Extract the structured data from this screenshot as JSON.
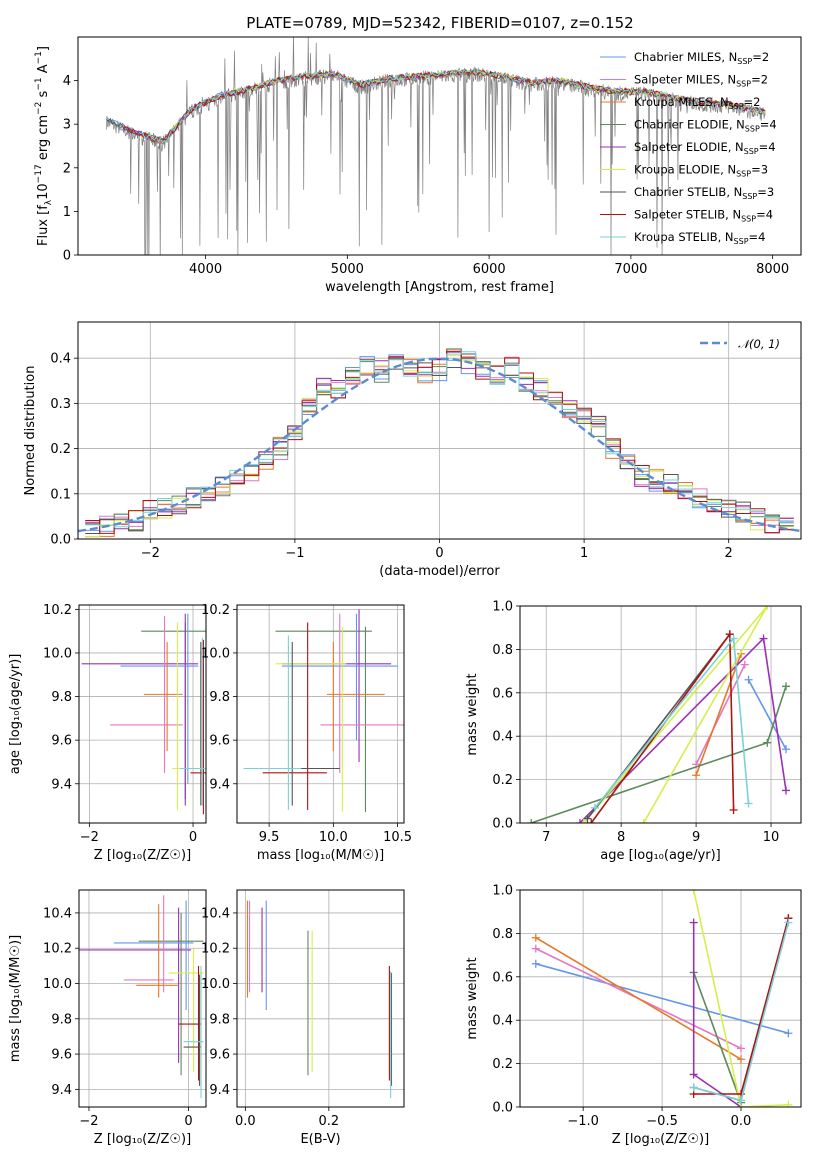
{
  "figure_title": "PLATE=0789, MJD=52342, FIBERID=0107, z=0.152",
  "legend_suffix": "N",
  "legend_sub": "SSP",
  "models": [
    {
      "label": "Chabrier MILES",
      "nssp": "2",
      "color": "#6495ED"
    },
    {
      "label": "Salpeter MILES",
      "nssp": "2",
      "color": "#E377C2"
    },
    {
      "label": "Kroupa MILES",
      "nssp": "2",
      "color": "#E8782A"
    },
    {
      "label": "Chabrier ELODIE",
      "nssp": "4",
      "color": "#5C8A5C"
    },
    {
      "label": "Salpeter ELODIE",
      "nssp": "4",
      "color": "#9B30B4"
    },
    {
      "label": "Kroupa ELODIE",
      "nssp": "3",
      "color": "#D4F04A"
    },
    {
      "label": "Chabrier STELIB",
      "nssp": "3",
      "color": "#555555"
    },
    {
      "label": "Salpeter STELIB",
      "nssp": "4",
      "color": "#B0120E"
    },
    {
      "label": "Kroupa STELIB",
      "nssp": "4",
      "color": "#78D2D8"
    }
  ],
  "chart_data": [
    {
      "id": "spectrum",
      "type": "line",
      "xlabel": "wavelength [Angstrom, rest frame]",
      "ylabel_text": "Flux [f",
      "ylabel_unit": "10",
      "ylabel_exp": "−17",
      "ylabel_rest": "erg cm",
      "xlim": [
        3100,
        8200
      ],
      "ylim": [
        0,
        5
      ],
      "xticks": [
        "4000",
        "5000",
        "6000",
        "7000",
        "8000"
      ],
      "xtick_values": [
        4000,
        5000,
        6000,
        7000,
        8000
      ],
      "yticks": [
        "0",
        "1",
        "2",
        "3",
        "4"
      ],
      "ytick_values": [
        0,
        1,
        2,
        3,
        4
      ],
      "continuum": {
        "x": [
          3300,
          3500,
          3700,
          3900,
          4100,
          4300,
          4500,
          4700,
          4900,
          5100,
          5300,
          5500,
          5700,
          5900,
          6100,
          6300,
          6500,
          6700,
          6900,
          7100,
          7300,
          7500,
          7700,
          7900
        ],
        "y": [
          3.05,
          2.75,
          2.55,
          3.3,
          3.6,
          3.75,
          3.95,
          4.05,
          4.1,
          3.85,
          4.0,
          4.05,
          4.1,
          4.15,
          4.05,
          3.9,
          3.95,
          3.8,
          3.7,
          3.7,
          3.55,
          3.45,
          3.4,
          3.25
        ]
      }
    },
    {
      "id": "residuals",
      "type": "line",
      "xlabel": "(data-model)/error",
      "ylabel": "Normed distribution",
      "legend": "𝒩(0, 1)",
      "xlim": [
        -2.5,
        2.5
      ],
      "ylim": [
        0,
        0.48
      ],
      "xticks": [
        "−2",
        "−1",
        "0",
        "1",
        "2"
      ],
      "xtick_values": [
        -2,
        -1,
        0,
        1,
        2
      ],
      "yticks": [
        "0.0",
        "0.1",
        "0.2",
        "0.3",
        "0.4"
      ],
      "ytick_values": [
        0,
        0.1,
        0.2,
        0.3,
        0.4
      ],
      "bin_centers": [
        -2.4,
        -2.3,
        -2.2,
        -2.1,
        -2.0,
        -1.9,
        -1.8,
        -1.7,
        -1.6,
        -1.5,
        -1.4,
        -1.3,
        -1.2,
        -1.1,
        -1.0,
        -0.9,
        -0.8,
        -0.7,
        -0.6,
        -0.5,
        -0.4,
        -0.3,
        -0.2,
        -0.1,
        0.0,
        0.1,
        0.2,
        0.3,
        0.4,
        0.5,
        0.6,
        0.7,
        0.8,
        0.9,
        1.0,
        1.1,
        1.2,
        1.3,
        1.4,
        1.5,
        1.6,
        1.7,
        1.8,
        1.9,
        2.0,
        2.1,
        2.2,
        2.3,
        2.4
      ],
      "histogram_mean": [
        0.023,
        0.028,
        0.035,
        0.04,
        0.062,
        0.065,
        0.08,
        0.09,
        0.1,
        0.115,
        0.13,
        0.15,
        0.175,
        0.2,
        0.23,
        0.3,
        0.34,
        0.33,
        0.36,
        0.385,
        0.37,
        0.39,
        0.385,
        0.37,
        0.375,
        0.4,
        0.39,
        0.375,
        0.36,
        0.38,
        0.35,
        0.33,
        0.31,
        0.29,
        0.27,
        0.25,
        0.2,
        0.17,
        0.14,
        0.13,
        0.12,
        0.1,
        0.09,
        0.08,
        0.07,
        0.06,
        0.045,
        0.035,
        0.028
      ]
    },
    {
      "id": "age_vs_Z",
      "type": "scatter",
      "xlabel": "Z [log₁₀(Z/Z☉)]",
      "ylabel": "age  [log₁₀(age/yr)]",
      "xlim": [
        -2.2,
        0.25
      ],
      "ylim": [
        9.22,
        10.22
      ],
      "xticks": [
        "−2",
        "0"
      ],
      "xtick_values": [
        -2,
        0
      ],
      "yticks": [
        "9.4",
        "9.6",
        "9.8",
        "10.0",
        "10.2"
      ],
      "ytick_values": [
        9.4,
        9.6,
        9.8,
        10.0,
        10.2
      ]
    },
    {
      "id": "age_vs_mass",
      "type": "scatter",
      "xlabel": "mass [log₁₀(M/M☉)]",
      "xlim": [
        9.25,
        10.55
      ],
      "ylim": [
        9.22,
        10.22
      ],
      "xticks": [
        "9.5",
        "10.0",
        "10.5"
      ],
      "xtick_values": [
        9.5,
        10.0,
        10.5
      ],
      "yticks": [
        "9.4",
        "9.6",
        "9.8",
        "10.0",
        "10.2"
      ],
      "ytick_values": [
        9.4,
        9.6,
        9.8,
        10.0,
        10.2
      ]
    },
    {
      "id": "weight_vs_age",
      "type": "line",
      "xlabel": "age  [log₁₀(age/yr)]",
      "ylabel": "mass weight",
      "xlim": [
        6.65,
        10.4
      ],
      "ylim": [
        0,
        1.0
      ],
      "xticks": [
        "7",
        "8",
        "9",
        "10"
      ],
      "xtick_values": [
        7,
        8,
        9,
        10
      ],
      "yticks": [
        "0.0",
        "0.2",
        "0.4",
        "0.6",
        "0.8",
        "1.0"
      ],
      "ytick_values": [
        0,
        0.2,
        0.4,
        0.6,
        0.8,
        1.0
      ],
      "series": [
        {
          "model": 0,
          "x": [
            9.7,
            10.2
          ],
          "y": [
            0.66,
            0.34
          ]
        },
        {
          "model": 1,
          "x": [
            9.0,
            9.65
          ],
          "y": [
            0.27,
            0.73
          ]
        },
        {
          "model": 2,
          "x": [
            9.0,
            9.6
          ],
          "y": [
            0.22,
            0.78
          ]
        },
        {
          "model": 3,
          "x": [
            6.8,
            9.95,
            10.2
          ],
          "y": [
            0.0,
            0.37,
            0.63
          ]
        },
        {
          "model": 4,
          "x": [
            7.45,
            9.9,
            10.2
          ],
          "y": [
            0.0,
            0.85,
            0.15
          ]
        },
        {
          "model": 5,
          "x": [
            8.3,
            9.95,
            7.5
          ],
          "y": [
            0.0,
            1.0,
            0.0
          ]
        },
        {
          "model": 6,
          "x": [
            7.55,
            9.45
          ],
          "y": [
            0.02,
            0.87
          ]
        },
        {
          "model": 7,
          "x": [
            7.6,
            9.45,
            9.5
          ],
          "y": [
            0.0,
            0.87,
            0.06
          ]
        },
        {
          "model": 8,
          "x": [
            7.65,
            9.5,
            9.7
          ],
          "y": [
            0.07,
            0.85,
            0.09
          ]
        }
      ]
    },
    {
      "id": "mass_vs_Z",
      "type": "scatter",
      "xlabel": "Z [log₁₀(Z/Z☉)]",
      "ylabel": "mass [log₁₀(M/M☉)]",
      "xlim": [
        -2.2,
        0.35
      ],
      "ylim": [
        9.3,
        10.53
      ],
      "xticks": [
        "−2",
        "0"
      ],
      "xtick_values": [
        -2,
        0
      ],
      "yticks": [
        "9.4",
        "9.6",
        "9.8",
        "10.0",
        "10.2",
        "10.4"
      ],
      "ytick_values": [
        9.4,
        9.6,
        9.8,
        10.0,
        10.2,
        10.4
      ]
    },
    {
      "id": "mass_vs_EBV",
      "type": "scatter",
      "xlabel": "E(B-V)",
      "xlim": [
        -0.02,
        0.38
      ],
      "ylim": [
        9.3,
        10.53
      ],
      "xticks": [
        "0.0",
        "0.2"
      ],
      "xtick_values": [
        0,
        0.2
      ],
      "yticks": [
        "9.4",
        "9.6",
        "9.8",
        "10.0",
        "10.2",
        "10.4"
      ],
      "ytick_values": [
        9.4,
        9.6,
        9.8,
        10.0,
        10.2,
        10.4
      ]
    },
    {
      "id": "weight_vs_Z",
      "type": "line",
      "xlabel": "Z [log₁₀(Z/Z☉)]",
      "ylabel": "mass weight",
      "xlim": [
        -1.4,
        0.38
      ],
      "ylim": [
        0,
        1.0
      ],
      "xticks": [
        "−1.0",
        "−0.5",
        "0.0"
      ],
      "xtick_values": [
        -1.0,
        -0.5,
        0.0
      ],
      "yticks": [
        "0.0",
        "0.2",
        "0.4",
        "0.6",
        "0.8",
        "1.0"
      ],
      "ytick_values": [
        0,
        0.2,
        0.4,
        0.6,
        0.8,
        1.0
      ],
      "series": [
        {
          "model": 0,
          "x": [
            -1.3,
            0.3
          ],
          "y": [
            0.66,
            0.34
          ]
        },
        {
          "model": 1,
          "x": [
            -1.3,
            0.0
          ],
          "y": [
            0.73,
            0.27
          ]
        },
        {
          "model": 2,
          "x": [
            -1.3,
            0.0
          ],
          "y": [
            0.78,
            0.22
          ]
        },
        {
          "model": 3,
          "x": [
            -0.3,
            0.0,
            0.0
          ],
          "y": [
            0.62,
            0.02,
            0.0
          ]
        },
        {
          "model": 4,
          "x": [
            -0.3,
            -0.3,
            0.0
          ],
          "y": [
            0.85,
            0.15,
            0.0
          ]
        },
        {
          "model": 5,
          "x": [
            -0.3,
            0.0,
            0.3
          ],
          "y": [
            1.0,
            0.0,
            0.01
          ]
        },
        {
          "model": 6,
          "x": [
            -0.3,
            0.0,
            0.3
          ],
          "y": [
            0.09,
            0.03,
            0.87
          ]
        },
        {
          "model": 7,
          "x": [
            -0.3,
            0.0,
            0.3
          ],
          "y": [
            0.06,
            0.06,
            0.87
          ]
        },
        {
          "model": 8,
          "x": [
            -0.3,
            0.0,
            0.3
          ],
          "y": [
            0.09,
            0.03,
            0.85
          ]
        }
      ]
    }
  ]
}
